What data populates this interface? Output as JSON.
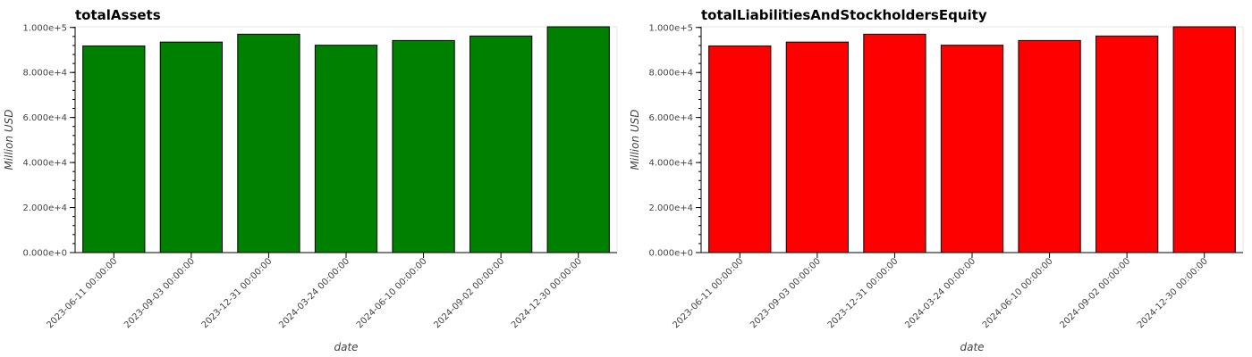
{
  "chart_data": [
    {
      "type": "bar",
      "title": "totalAssets",
      "xlabel": "date",
      "ylabel": "Million USD",
      "categories": [
        "2023-06-11 00:00:00",
        "2023-09-03 00:00:00",
        "2023-12-31 00:00:00",
        "2024-03-24 00:00:00",
        "2024-06-10 00:00:00",
        "2024-09-02 00:00:00",
        "2024-12-30 00:00:00"
      ],
      "values": [
        91800,
        93500,
        97000,
        92100,
        94200,
        96200,
        100300
      ],
      "ylim": [
        0,
        100300
      ],
      "yticks": [
        0,
        20000,
        40000,
        60000,
        80000,
        100000
      ],
      "ytick_labels": [
        "0.000e+0",
        "2.000e+4",
        "4.000e+4",
        "6.000e+4",
        "8.000e+4",
        "1.000e+5"
      ],
      "bar_color": "#008000",
      "grid": false,
      "legend": "none"
    },
    {
      "type": "bar",
      "title": "totalLiabilitiesAndStockholdersEquity",
      "xlabel": "date",
      "ylabel": "Million USD",
      "categories": [
        "2023-06-11 00:00:00",
        "2023-09-03 00:00:00",
        "2023-12-31 00:00:00",
        "2024-03-24 00:00:00",
        "2024-06-10 00:00:00",
        "2024-09-02 00:00:00",
        "2024-12-30 00:00:00"
      ],
      "values": [
        91800,
        93500,
        97000,
        92100,
        94200,
        96200,
        100300
      ],
      "ylim": [
        0,
        100300
      ],
      "yticks": [
        0,
        20000,
        40000,
        60000,
        80000,
        100000
      ],
      "ytick_labels": [
        "0.000e+0",
        "2.000e+4",
        "4.000e+4",
        "6.000e+4",
        "8.000e+4",
        "1.000e+5"
      ],
      "bar_color": "#ff0000",
      "grid": false,
      "legend": "none"
    }
  ]
}
